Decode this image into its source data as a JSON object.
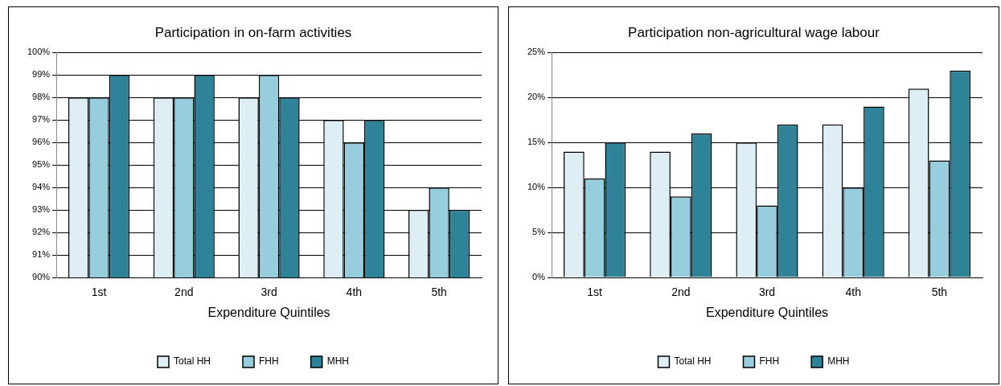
{
  "chart_data": [
    {
      "type": "bar",
      "title": "Participation in on-farm activities",
      "xlabel": "Expenditure Quintiles",
      "categories": [
        "1st",
        "2nd",
        "3rd",
        "4th",
        "5th"
      ],
      "series": [
        {
          "name": "Total HH",
          "color": "#ddeef4",
          "values": [
            98,
            98,
            98,
            97,
            93
          ]
        },
        {
          "name": "FHH",
          "color": "#96cedd",
          "values": [
            98,
            98,
            99,
            96,
            94
          ]
        },
        {
          "name": "MHH",
          "color": "#2f8399",
          "values": [
            99,
            99,
            98,
            97,
            93
          ]
        }
      ],
      "ylim": [
        90,
        100
      ],
      "yticks": [
        {
          "value": 90,
          "label": "90%"
        },
        {
          "value": 91,
          "label": "91%"
        },
        {
          "value": 92,
          "label": "92%"
        },
        {
          "value": 93,
          "label": "93%"
        },
        {
          "value": 94,
          "label": "94%"
        },
        {
          "value": 95,
          "label": "95%"
        },
        {
          "value": 96,
          "label": "96%"
        },
        {
          "value": 97,
          "label": "97%"
        },
        {
          "value": 98,
          "label": "98%"
        },
        {
          "value": 99,
          "label": "99%"
        },
        {
          "value": 100,
          "label": "100%"
        }
      ],
      "grid": "y",
      "legend": "bottom"
    },
    {
      "type": "bar",
      "title": "Participation non-agricultural wage labour",
      "xlabel": "Expenditure Quintiles",
      "categories": [
        "1st",
        "2nd",
        "3rd",
        "4th",
        "5th"
      ],
      "series": [
        {
          "name": "Total HH",
          "color": "#ddeef4",
          "values": [
            14,
            14,
            15,
            17,
            21
          ]
        },
        {
          "name": "FHH",
          "color": "#96cedd",
          "values": [
            11,
            9,
            8,
            10,
            13
          ]
        },
        {
          "name": "MHH",
          "color": "#2f8399",
          "values": [
            15,
            16,
            17,
            19,
            23
          ]
        }
      ],
      "ylim": [
        0,
        25
      ],
      "yticks": [
        {
          "value": 0,
          "label": "0%"
        },
        {
          "value": 5,
          "label": "5%"
        },
        {
          "value": 10,
          "label": "10%"
        },
        {
          "value": 15,
          "label": "15%"
        },
        {
          "value": 20,
          "label": "20%"
        },
        {
          "value": 25,
          "label": "25%"
        }
      ],
      "grid": "y",
      "legend": "bottom"
    }
  ]
}
